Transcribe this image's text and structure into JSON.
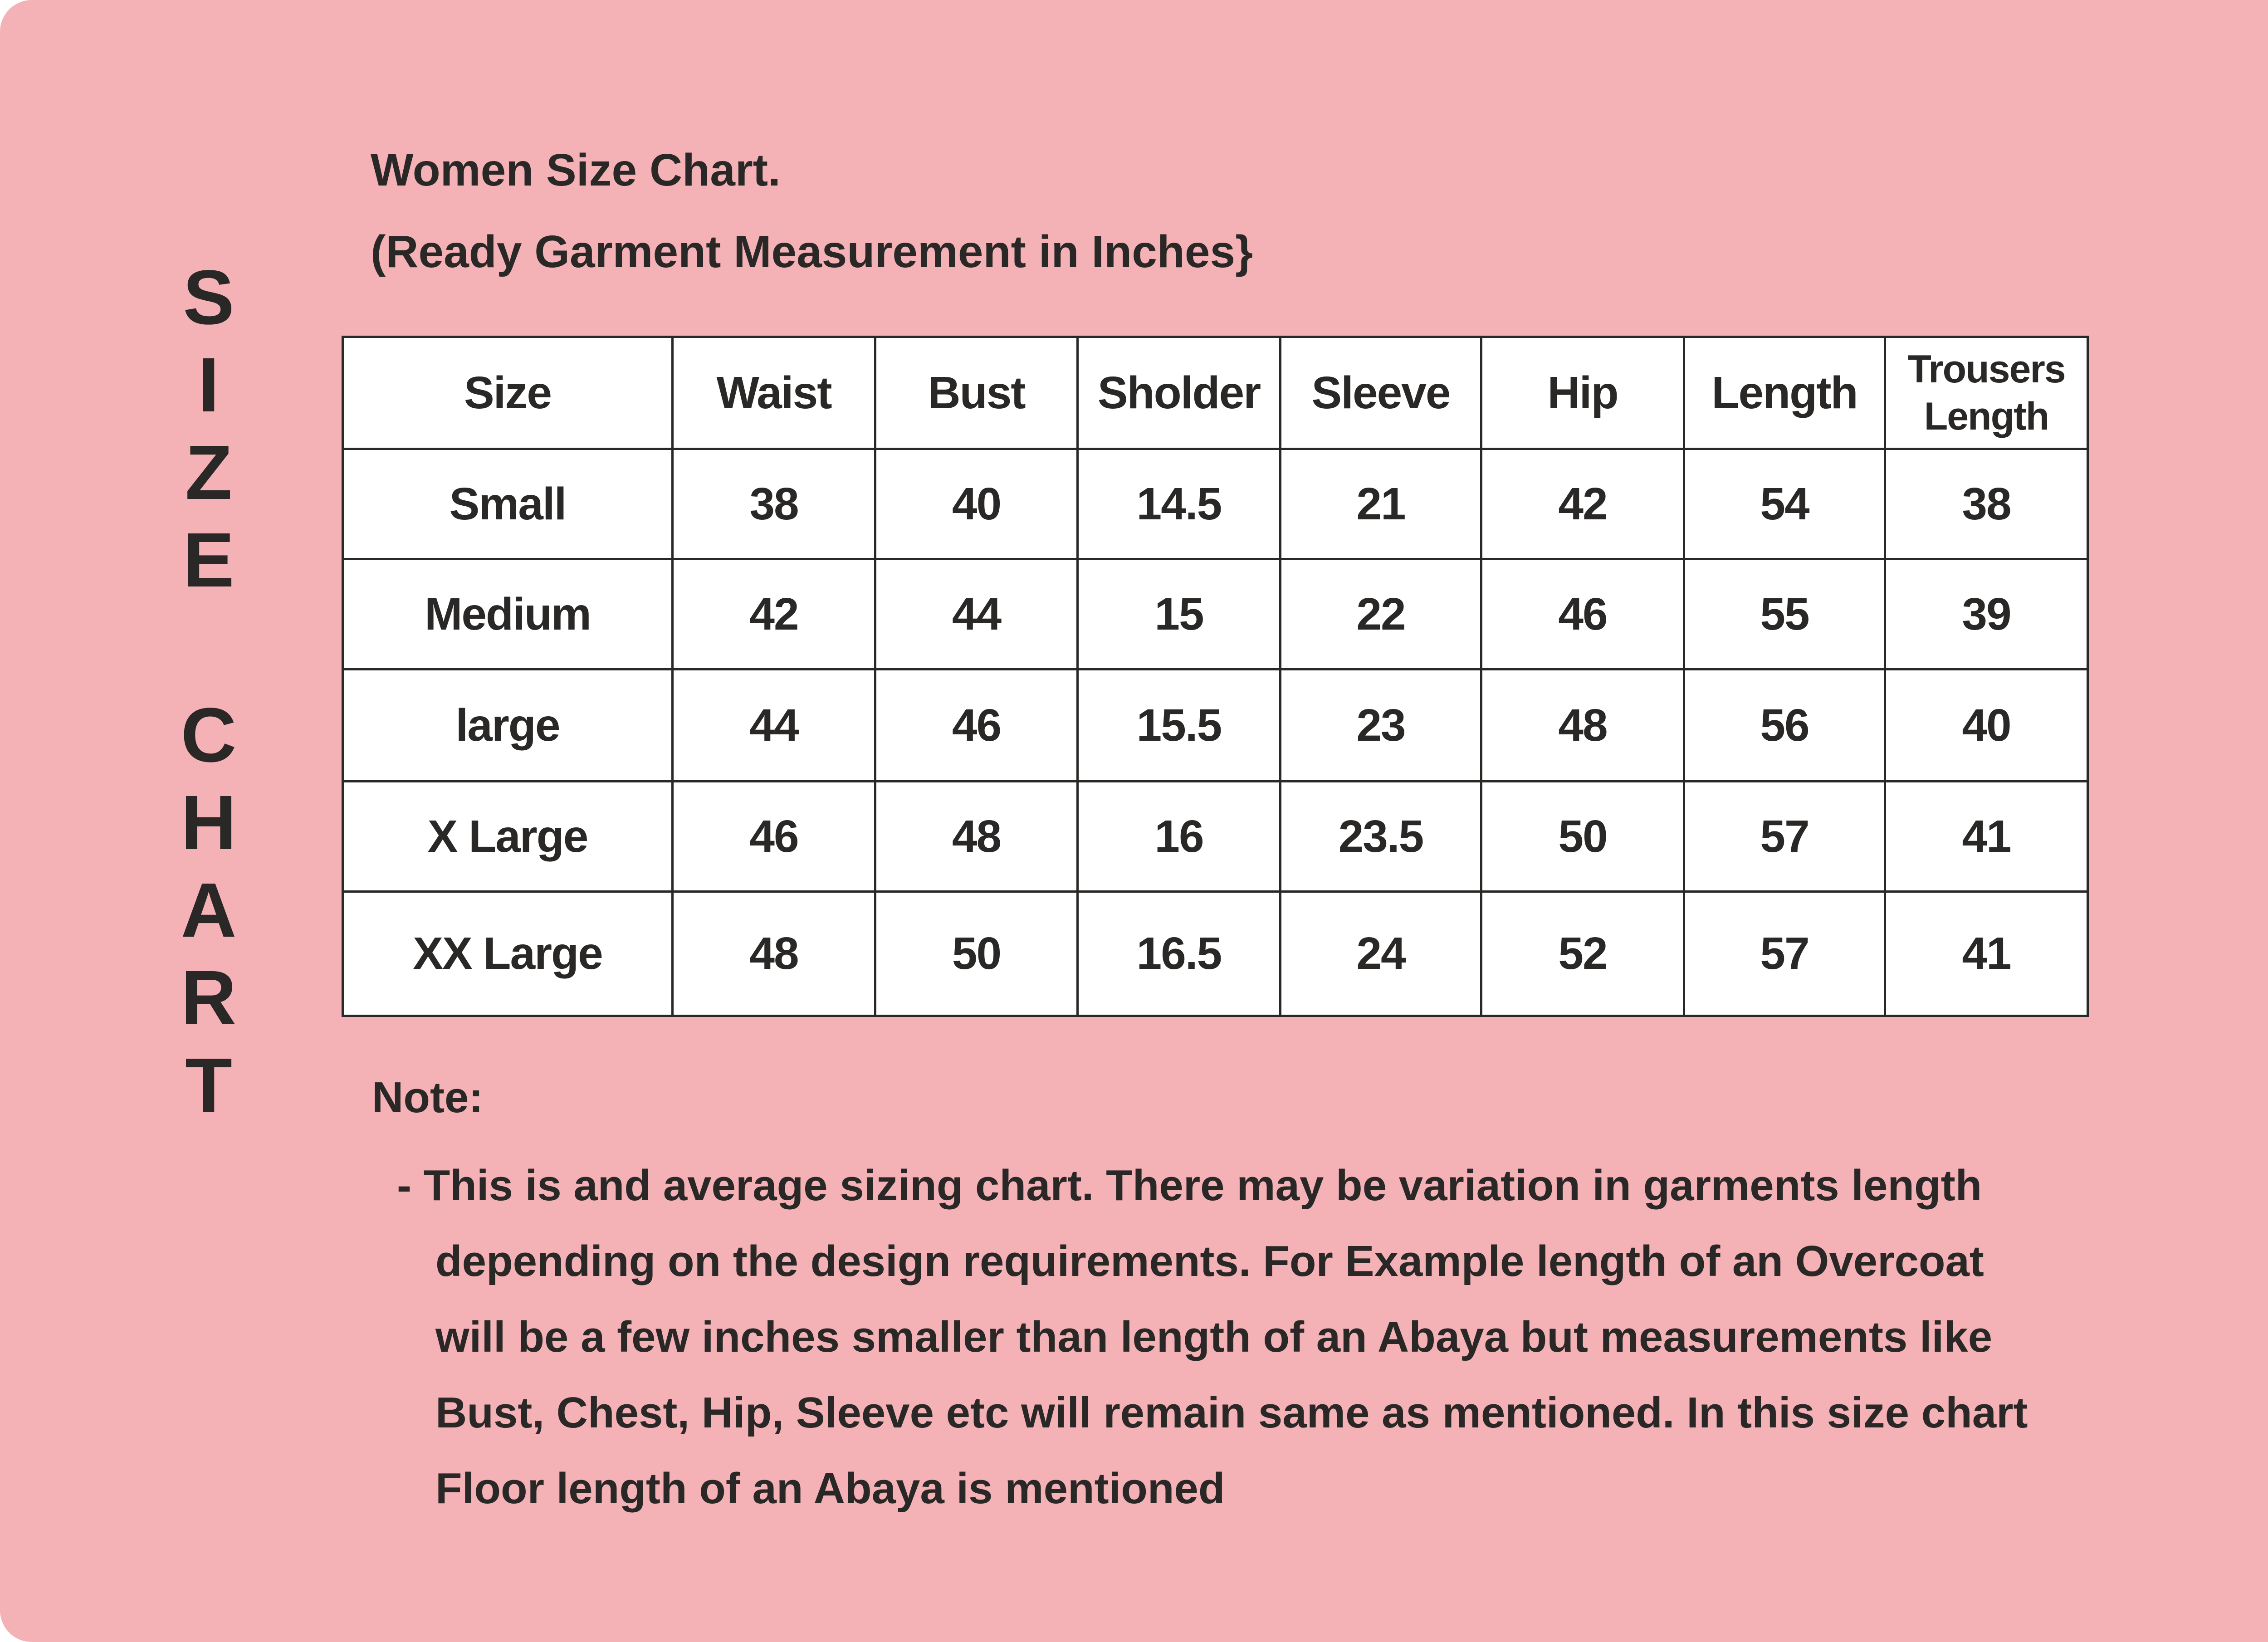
{
  "colors": {
    "background": "#f4b2b7",
    "text": "#2a2826",
    "table_bg": "#ffffff"
  },
  "side_title_letters": [
    "S",
    "I",
    "Z",
    "E",
    "",
    "C",
    "H",
    "A",
    "R",
    "T"
  ],
  "title": "Women Size Chart.",
  "subtitle": "(Ready Garment Measurement in Inches}",
  "table": {
    "headers": [
      "Size",
      "Waist",
      "Bust",
      "Sholder",
      "Sleeve",
      "Hip",
      "Length",
      "Trousers Length"
    ],
    "rows": [
      [
        "Small",
        "38",
        "40",
        "14.5",
        "21",
        "42",
        "54",
        "38"
      ],
      [
        "Medium",
        "42",
        "44",
        "15",
        "22",
        "46",
        "55",
        "39"
      ],
      [
        "large",
        "44",
        "46",
        "15.5",
        "23",
        "48",
        "56",
        "40"
      ],
      [
        "X Large",
        "46",
        "48",
        "16",
        "23.5",
        "50",
        "57",
        "41"
      ],
      [
        "XX Large",
        "48",
        "50",
        "16.5",
        "24",
        "52",
        "57",
        "41"
      ]
    ]
  },
  "note": {
    "label": "Note:",
    "lines": [
      "- This is and average sizing chart. There may be variation in garments length",
      "depending on the design requirements. For Example length of an Overcoat",
      "will be a few inches smaller than length of an Abaya but measurements like",
      "Bust, Chest, Hip, Sleeve etc will remain same as mentioned. In this size chart",
      "Floor length of an Abaya is mentioned"
    ]
  }
}
